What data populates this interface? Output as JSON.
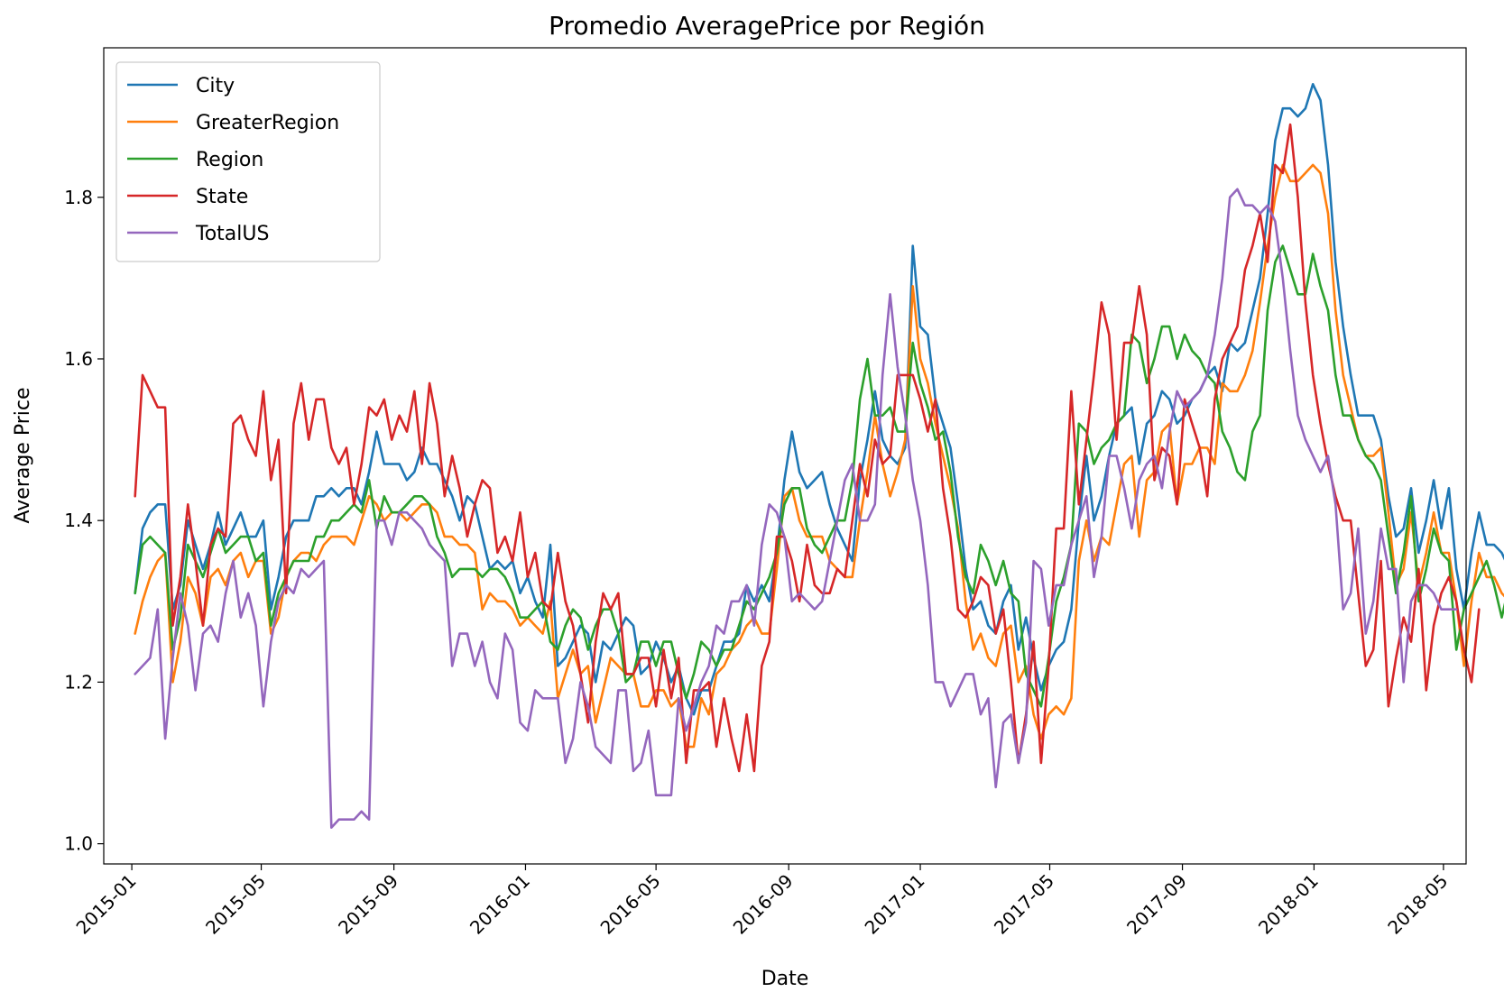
{
  "chart_data": {
    "type": "line",
    "title": "Promedio AveragePrice por Región",
    "xlabel": "Date",
    "ylabel": "Average Price",
    "x_ticks": [
      "2015-01",
      "2015-05",
      "2015-09",
      "2016-01",
      "2016-05",
      "2016-09",
      "2017-01",
      "2017-05",
      "2017-09",
      "2018-01",
      "2018-05"
    ],
    "y_ticks": [
      "1.0",
      "1.2",
      "1.4",
      "1.6",
      "1.8"
    ],
    "xlim": [
      "2014-12-06",
      "2018-05-22"
    ],
    "ylim": [
      0.975,
      1.985
    ],
    "grid": false,
    "legend_position": "upper left",
    "x_start": "2015-01-04",
    "x_step_days": 7,
    "series": [
      {
        "name": "City",
        "color": "#1f77b4",
        "values": [
          1.31,
          1.39,
          1.41,
          1.42,
          1.42,
          1.29,
          1.32,
          1.4,
          1.37,
          1.34,
          1.37,
          1.41,
          1.37,
          1.39,
          1.41,
          1.38,
          1.38,
          1.4,
          1.29,
          1.33,
          1.38,
          1.4,
          1.4,
          1.4,
          1.43,
          1.43,
          1.44,
          1.43,
          1.44,
          1.44,
          1.42,
          1.46,
          1.51,
          1.47,
          1.47,
          1.47,
          1.45,
          1.46,
          1.49,
          1.47,
          1.47,
          1.45,
          1.43,
          1.4,
          1.43,
          1.42,
          1.38,
          1.34,
          1.35,
          1.34,
          1.35,
          1.31,
          1.33,
          1.3,
          1.28,
          1.37,
          1.22,
          1.23,
          1.25,
          1.27,
          1.26,
          1.2,
          1.25,
          1.24,
          1.26,
          1.28,
          1.27,
          1.21,
          1.22,
          1.25,
          1.23,
          1.2,
          1.22,
          1.18,
          1.16,
          1.19,
          1.19,
          1.22,
          1.25,
          1.25,
          1.26,
          1.32,
          1.3,
          1.32,
          1.3,
          1.36,
          1.45,
          1.51,
          1.46,
          1.44,
          1.45,
          1.46,
          1.42,
          1.39,
          1.37,
          1.35,
          1.45,
          1.5,
          1.56,
          1.5,
          1.48,
          1.47,
          1.49,
          1.74,
          1.64,
          1.63,
          1.55,
          1.52,
          1.49,
          1.42,
          1.34,
          1.29,
          1.3,
          1.27,
          1.26,
          1.3,
          1.32,
          1.24,
          1.28,
          1.23,
          1.19,
          1.22,
          1.24,
          1.25,
          1.29,
          1.4,
          1.48,
          1.4,
          1.43,
          1.48,
          1.52,
          1.53,
          1.54,
          1.47,
          1.52,
          1.53,
          1.56,
          1.55,
          1.52,
          1.53,
          1.55,
          1.56,
          1.58,
          1.59,
          1.56,
          1.62,
          1.61,
          1.62,
          1.66,
          1.7,
          1.78,
          1.87,
          1.91,
          1.91,
          1.9,
          1.91,
          1.94,
          1.92,
          1.84,
          1.72,
          1.64,
          1.58,
          1.53,
          1.53,
          1.53,
          1.5,
          1.43,
          1.38,
          1.39,
          1.44,
          1.36,
          1.4,
          1.45,
          1.39,
          1.44,
          1.34,
          1.29,
          1.36,
          1.41,
          1.37,
          1.37,
          1.36,
          1.34,
          1.37
        ]
      },
      {
        "name": "GreaterRegion",
        "color": "#ff7f0e",
        "values": [
          1.26,
          1.3,
          1.33,
          1.35,
          1.36,
          1.2,
          1.25,
          1.33,
          1.31,
          1.27,
          1.33,
          1.34,
          1.32,
          1.35,
          1.36,
          1.33,
          1.35,
          1.35,
          1.26,
          1.28,
          1.33,
          1.35,
          1.36,
          1.36,
          1.35,
          1.37,
          1.38,
          1.38,
          1.38,
          1.37,
          1.4,
          1.43,
          1.42,
          1.4,
          1.41,
          1.41,
          1.4,
          1.41,
          1.42,
          1.42,
          1.41,
          1.38,
          1.38,
          1.37,
          1.37,
          1.36,
          1.29,
          1.31,
          1.3,
          1.3,
          1.29,
          1.27,
          1.28,
          1.27,
          1.26,
          1.3,
          1.18,
          1.21,
          1.24,
          1.21,
          1.22,
          1.15,
          1.19,
          1.23,
          1.22,
          1.21,
          1.21,
          1.17,
          1.17,
          1.19,
          1.19,
          1.17,
          1.18,
          1.12,
          1.12,
          1.18,
          1.16,
          1.21,
          1.22,
          1.24,
          1.25,
          1.27,
          1.28,
          1.26,
          1.26,
          1.34,
          1.43,
          1.44,
          1.4,
          1.38,
          1.38,
          1.38,
          1.35,
          1.34,
          1.33,
          1.33,
          1.4,
          1.46,
          1.53,
          1.47,
          1.43,
          1.46,
          1.5,
          1.69,
          1.6,
          1.57,
          1.52,
          1.48,
          1.44,
          1.39,
          1.3,
          1.24,
          1.26,
          1.23,
          1.22,
          1.26,
          1.27,
          1.2,
          1.22,
          1.16,
          1.13,
          1.16,
          1.17,
          1.16,
          1.18,
          1.35,
          1.4,
          1.35,
          1.38,
          1.37,
          1.42,
          1.47,
          1.48,
          1.38,
          1.45,
          1.46,
          1.51,
          1.52,
          1.42,
          1.47,
          1.47,
          1.49,
          1.49,
          1.47,
          1.57,
          1.56,
          1.56,
          1.58,
          1.61,
          1.67,
          1.74,
          1.8,
          1.84,
          1.82,
          1.82,
          1.83,
          1.84,
          1.83,
          1.78,
          1.66,
          1.58,
          1.54,
          1.5,
          1.48,
          1.48,
          1.49,
          1.41,
          1.32,
          1.34,
          1.41,
          1.32,
          1.36,
          1.41,
          1.36,
          1.36,
          1.3,
          1.22,
          1.3,
          1.36,
          1.33,
          1.33,
          1.31,
          1.3,
          1.31
        ]
      },
      {
        "name": "Region",
        "color": "#2ca02c",
        "values": [
          1.31,
          1.37,
          1.38,
          1.37,
          1.36,
          1.24,
          1.28,
          1.37,
          1.35,
          1.33,
          1.36,
          1.39,
          1.36,
          1.37,
          1.38,
          1.38,
          1.35,
          1.36,
          1.27,
          1.31,
          1.33,
          1.35,
          1.35,
          1.35,
          1.38,
          1.38,
          1.4,
          1.4,
          1.41,
          1.42,
          1.41,
          1.45,
          1.39,
          1.43,
          1.41,
          1.41,
          1.42,
          1.43,
          1.43,
          1.42,
          1.38,
          1.36,
          1.33,
          1.34,
          1.34,
          1.34,
          1.33,
          1.34,
          1.34,
          1.33,
          1.31,
          1.28,
          1.28,
          1.29,
          1.3,
          1.25,
          1.24,
          1.27,
          1.29,
          1.28,
          1.24,
          1.27,
          1.29,
          1.29,
          1.26,
          1.2,
          1.21,
          1.25,
          1.25,
          1.22,
          1.25,
          1.25,
          1.21,
          1.18,
          1.21,
          1.25,
          1.24,
          1.22,
          1.24,
          1.24,
          1.27,
          1.3,
          1.29,
          1.31,
          1.33,
          1.36,
          1.42,
          1.44,
          1.44,
          1.39,
          1.37,
          1.36,
          1.38,
          1.4,
          1.4,
          1.45,
          1.55,
          1.6,
          1.53,
          1.53,
          1.54,
          1.51,
          1.51,
          1.62,
          1.57,
          1.54,
          1.5,
          1.51,
          1.46,
          1.38,
          1.33,
          1.31,
          1.37,
          1.35,
          1.32,
          1.35,
          1.31,
          1.3,
          1.21,
          1.19,
          1.17,
          1.23,
          1.3,
          1.33,
          1.37,
          1.52,
          1.51,
          1.47,
          1.49,
          1.5,
          1.52,
          1.53,
          1.63,
          1.62,
          1.57,
          1.6,
          1.64,
          1.64,
          1.6,
          1.63,
          1.61,
          1.6,
          1.58,
          1.57,
          1.51,
          1.49,
          1.46,
          1.45,
          1.51,
          1.53,
          1.66,
          1.72,
          1.74,
          1.71,
          1.68,
          1.68,
          1.73,
          1.69,
          1.66,
          1.58,
          1.53,
          1.53,
          1.5,
          1.48,
          1.47,
          1.45,
          1.38,
          1.31,
          1.36,
          1.43,
          1.3,
          1.34,
          1.39,
          1.36,
          1.35,
          1.24,
          1.29,
          1.31,
          1.33,
          1.35,
          1.32,
          1.28,
          1.32
        ]
      },
      {
        "name": "State",
        "color": "#d62728",
        "values": [
          1.43,
          1.58,
          1.56,
          1.54,
          1.54,
          1.27,
          1.33,
          1.42,
          1.35,
          1.27,
          1.37,
          1.39,
          1.38,
          1.52,
          1.53,
          1.5,
          1.48,
          1.56,
          1.45,
          1.5,
          1.31,
          1.52,
          1.57,
          1.5,
          1.55,
          1.55,
          1.49,
          1.47,
          1.49,
          1.42,
          1.47,
          1.54,
          1.53,
          1.55,
          1.5,
          1.53,
          1.51,
          1.56,
          1.47,
          1.57,
          1.52,
          1.43,
          1.48,
          1.44,
          1.38,
          1.42,
          1.45,
          1.44,
          1.36,
          1.38,
          1.35,
          1.41,
          1.33,
          1.36,
          1.3,
          1.29,
          1.36,
          1.3,
          1.27,
          1.21,
          1.15,
          1.25,
          1.31,
          1.29,
          1.31,
          1.21,
          1.21,
          1.23,
          1.23,
          1.17,
          1.24,
          1.18,
          1.23,
          1.1,
          1.19,
          1.19,
          1.2,
          1.12,
          1.18,
          1.13,
          1.09,
          1.16,
          1.09,
          1.22,
          1.25,
          1.38,
          1.38,
          1.35,
          1.3,
          1.37,
          1.32,
          1.31,
          1.31,
          1.34,
          1.33,
          1.4,
          1.47,
          1.43,
          1.5,
          1.47,
          1.48,
          1.58,
          1.58,
          1.58,
          1.55,
          1.51,
          1.55,
          1.44,
          1.38,
          1.29,
          1.28,
          1.3,
          1.33,
          1.32,
          1.26,
          1.29,
          1.2,
          1.1,
          1.16,
          1.25,
          1.1,
          1.22,
          1.39,
          1.39,
          1.56,
          1.42,
          1.5,
          1.58,
          1.67,
          1.63,
          1.5,
          1.62,
          1.62,
          1.69,
          1.63,
          1.45,
          1.49,
          1.48,
          1.42,
          1.55,
          1.52,
          1.49,
          1.43,
          1.55,
          1.6,
          1.62,
          1.64,
          1.71,
          1.74,
          1.78,
          1.72,
          1.84,
          1.83,
          1.89,
          1.8,
          1.67,
          1.58,
          1.52,
          1.47,
          1.43,
          1.4,
          1.4,
          1.31,
          1.22,
          1.24,
          1.35,
          1.17,
          1.23,
          1.28,
          1.25,
          1.34,
          1.19,
          1.27,
          1.31,
          1.33,
          1.3,
          1.24,
          1.2,
          1.29
        ]
      },
      {
        "name": "TotalUS",
        "color": "#9467bd",
        "values": [
          1.21,
          1.22,
          1.23,
          1.29,
          1.13,
          1.23,
          1.31,
          1.27,
          1.19,
          1.26,
          1.27,
          1.25,
          1.31,
          1.35,
          1.28,
          1.31,
          1.27,
          1.17,
          1.25,
          1.3,
          1.32,
          1.31,
          1.34,
          1.33,
          1.34,
          1.35,
          1.02,
          1.03,
          1.03,
          1.03,
          1.04,
          1.03,
          1.4,
          1.4,
          1.37,
          1.41,
          1.41,
          1.4,
          1.39,
          1.37,
          1.36,
          1.35,
          1.22,
          1.26,
          1.26,
          1.22,
          1.25,
          1.2,
          1.18,
          1.26,
          1.24,
          1.15,
          1.14,
          1.19,
          1.18,
          1.18,
          1.18,
          1.1,
          1.13,
          1.2,
          1.17,
          1.12,
          1.11,
          1.1,
          1.19,
          1.19,
          1.09,
          1.1,
          1.14,
          1.06,
          1.06,
          1.06,
          1.18,
          1.14,
          1.17,
          1.2,
          1.22,
          1.27,
          1.26,
          1.3,
          1.3,
          1.32,
          1.27,
          1.37,
          1.42,
          1.41,
          1.38,
          1.3,
          1.31,
          1.3,
          1.29,
          1.3,
          1.35,
          1.4,
          1.45,
          1.47,
          1.4,
          1.4,
          1.42,
          1.58,
          1.68,
          1.59,
          1.53,
          1.45,
          1.4,
          1.32,
          1.2,
          1.2,
          1.17,
          1.19,
          1.21,
          1.21,
          1.16,
          1.18,
          1.07,
          1.15,
          1.16,
          1.1,
          1.15,
          1.35,
          1.34,
          1.27,
          1.32,
          1.32,
          1.37,
          1.4,
          1.43,
          1.33,
          1.38,
          1.48,
          1.48,
          1.44,
          1.39,
          1.45,
          1.47,
          1.48,
          1.44,
          1.51,
          1.56,
          1.54,
          1.55,
          1.56,
          1.58,
          1.63,
          1.7,
          1.8,
          1.81,
          1.79,
          1.79,
          1.78,
          1.79,
          1.77,
          1.7,
          1.61,
          1.53,
          1.5,
          1.48,
          1.46,
          1.48,
          1.42,
          1.29,
          1.31,
          1.39,
          1.26,
          1.3,
          1.39,
          1.34,
          1.34,
          1.2,
          1.3,
          1.32,
          1.32,
          1.31,
          1.29,
          1.29,
          1.29
        ]
      }
    ]
  }
}
